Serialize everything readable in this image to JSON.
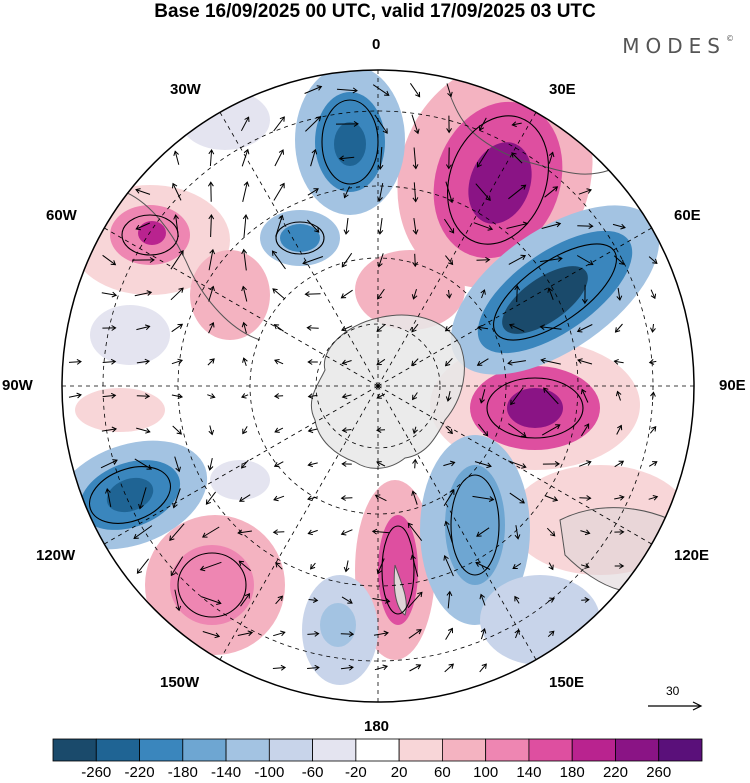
{
  "title": "Base 16/09/2025 00 UTC, valid 17/09/2025 03 UTC",
  "logo": "MODES",
  "logo_mark": "©",
  "longitude_labels": {
    "lon_0": "0",
    "lon_30e": "30E",
    "lon_60e": "60E",
    "lon_90e": "90E",
    "lon_120e": "120E",
    "lon_150e": "150E",
    "lon_180": "180",
    "lon_150w": "150W",
    "lon_120w": "120W",
    "lon_90w": "90W",
    "lon_60w": "60W",
    "lon_30w": "30W"
  },
  "reference_vector": {
    "value": "30"
  },
  "colorbar": {
    "labels": [
      "-260",
      "-220",
      "-180",
      "-140",
      "-100",
      "-60",
      "-20",
      "20",
      "60",
      "100",
      "140",
      "180",
      "220",
      "260"
    ],
    "colors": [
      "#1a4a6b",
      "#1f6494",
      "#3a86bd",
      "#6ea6d2",
      "#a3c3e2",
      "#c8d4ea",
      "#e4e4f0",
      "#ffffff",
      "#f8d6d8",
      "#f4b3c1",
      "#ee86b2",
      "#de4fa0",
      "#b9238f",
      "#8a1485",
      "#5a107a"
    ]
  },
  "map_colors": {
    "land": "#e8e8e8",
    "coast": "#555555",
    "grid": "#000000"
  }
}
